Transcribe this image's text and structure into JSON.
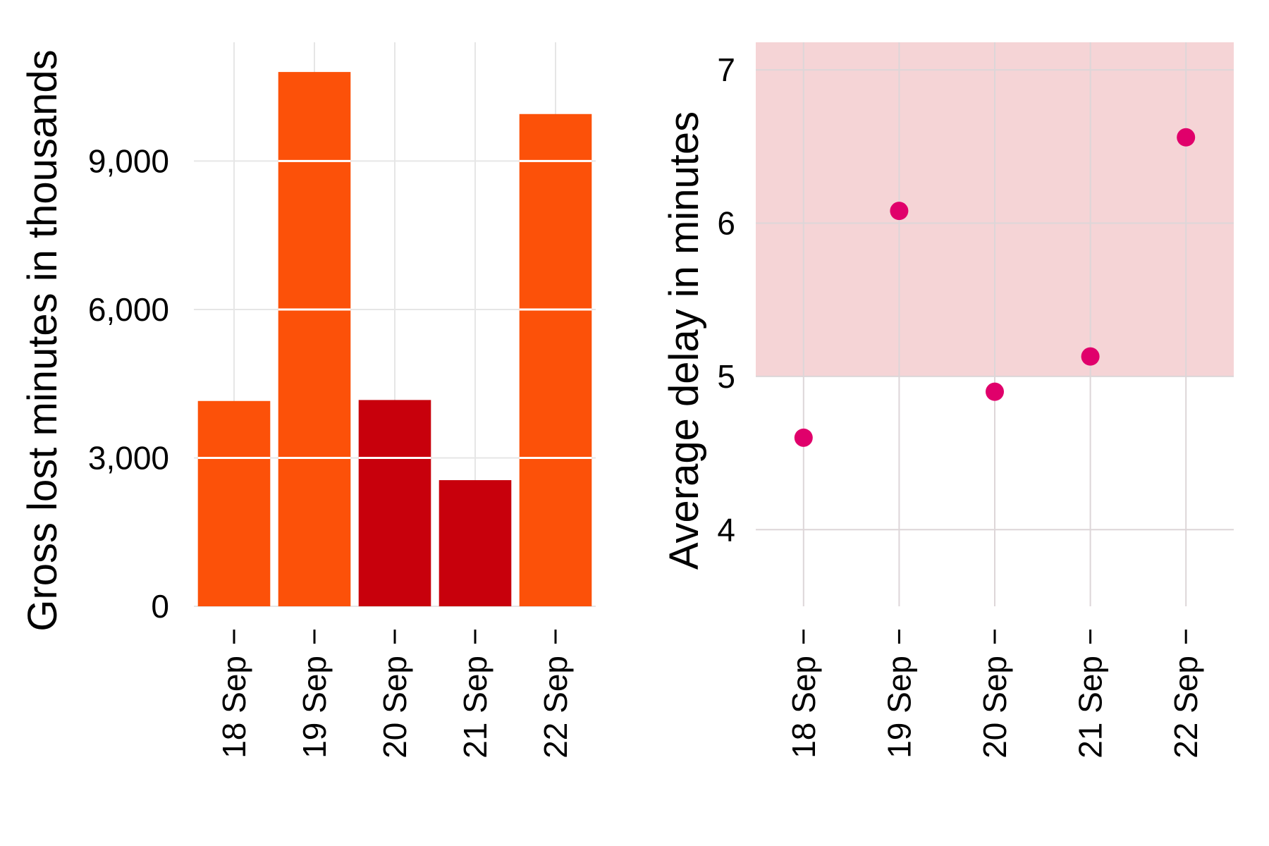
{
  "chart_data": [
    {
      "type": "bar",
      "stacked_segments": true,
      "title": "",
      "xlabel": "",
      "ylabel": "Gross lost minutes in thousands",
      "categories": [
        "18 Sep",
        "19 Sep",
        "20 Sep",
        "21 Sep",
        "22 Sep"
      ],
      "values": [
        4150,
        10800,
        4170,
        2550,
        9950
      ],
      "bar_colors": [
        "#fc5109",
        "#fc5109",
        "#c8000c",
        "#c8000c",
        "#fc5109"
      ],
      "segment_step": 3000,
      "segment_line_color": "#ffffff",
      "ylim": [
        0,
        11400
      ],
      "yticks": [
        0,
        3000,
        6000,
        9000
      ],
      "ytick_labels": [
        "0",
        "3,000",
        "6,000",
        "9,000"
      ],
      "grid": true
    },
    {
      "type": "scatter",
      "title": "",
      "xlabel": "",
      "ylabel": "Average delay in minutes",
      "categories": [
        "18 Sep",
        "19 Sep",
        "20 Sep",
        "21 Sep",
        "22 Sep"
      ],
      "values": [
        4.6,
        6.08,
        4.9,
        5.13,
        6.56
      ],
      "point_color": "#e0006b",
      "shaded_band": {
        "from": 5.0,
        "to": 7.18,
        "color": "#f5d4d6"
      },
      "ylim": [
        3.5,
        7.18
      ],
      "yticks": [
        4,
        5,
        6,
        7
      ],
      "ytick_labels": [
        "4",
        "5",
        "6",
        "7"
      ],
      "grid": true
    }
  ]
}
